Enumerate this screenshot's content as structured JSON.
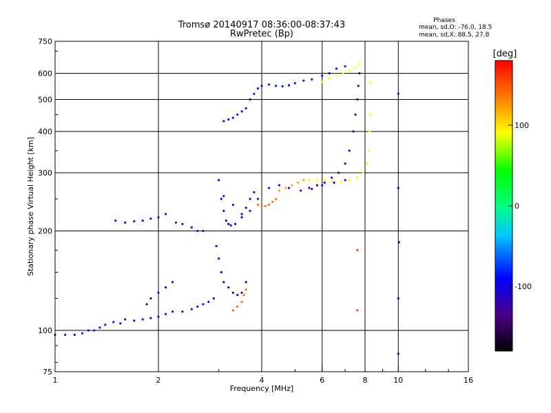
{
  "chart_data": {
    "type": "scatter",
    "title": "Tromsø 20140917 08:36:00-08:37:43",
    "subtitle": "RwPretec (Bp)",
    "xlabel": "Frequency [MHz]",
    "ylabel": "Stationary phase Virtual Height [km]",
    "x_scale": "log",
    "y_scale": "log",
    "xlim": [
      1,
      16
    ],
    "ylim": [
      75,
      750
    ],
    "x_ticks": [
      1,
      2,
      4,
      6,
      8,
      10,
      16
    ],
    "x_tick_labels": [
      "1",
      "2",
      "4",
      "6",
      "8",
      "10",
      "16"
    ],
    "y_ticks": [
      75,
      100,
      200,
      300,
      400,
      500,
      600,
      750
    ],
    "y_tick_labels": [
      "75",
      "100",
      "200",
      "300",
      "400",
      "500",
      "600",
      "750"
    ],
    "grid": true,
    "phases_header": "Phases",
    "stats": [
      "mean, sd,O: -76.0, 18.5",
      "mean, sd,X:  88.5, 27.8"
    ],
    "colorbar": {
      "label": "[deg]",
      "range": [
        -180,
        180
      ],
      "tick_values": [
        100,
        0,
        -100
      ],
      "tick_labels": [
        "100",
        "0",
        "-100"
      ]
    },
    "series": [
      {
        "phase": -85,
        "x": [
          1.0,
          1.07,
          1.14,
          1.2,
          1.25,
          1.3,
          1.35,
          1.4,
          1.48,
          1.55,
          1.6,
          1.7,
          1.8,
          1.9,
          2.0,
          2.1,
          2.2,
          2.35,
          2.5,
          2.6,
          2.7,
          2.8,
          2.9
        ],
        "y": [
          97,
          97,
          97,
          98,
          100,
          100,
          102,
          104,
          106,
          105,
          108,
          107,
          108,
          109,
          110,
          112,
          114,
          114,
          116,
          118,
          120,
          122,
          125
        ]
      },
      {
        "phase": -85,
        "x": [
          1.5,
          1.6,
          1.7,
          1.8,
          1.9,
          2.0,
          2.1,
          2.25,
          2.35,
          2.5,
          2.6,
          2.7
        ],
        "y": [
          215,
          212,
          214,
          215,
          218,
          220,
          225,
          212,
          210,
          205,
          200,
          200
        ]
      },
      {
        "phase": -85,
        "x": [
          3.1,
          3.3,
          3.5,
          3.7,
          3.9,
          4.2,
          4.5,
          4.8,
          5.2,
          5.6,
          6.0,
          6.5,
          7.0
        ],
        "y": [
          255,
          240,
          225,
          230,
          250,
          270,
          275,
          270,
          265,
          268,
          275,
          280,
          285
        ]
      },
      {
        "phase": -85,
        "x": [
          3.1,
          3.2,
          3.3,
          3.4,
          3.5,
          3.6,
          3.7,
          3.8,
          3.9,
          4.0,
          4.2,
          4.4,
          4.6,
          4.8,
          5.0,
          5.3,
          5.6,
          6.0,
          6.3,
          6.6,
          7.0
        ],
        "y": [
          430,
          435,
          440,
          450,
          460,
          470,
          500,
          520,
          540,
          550,
          555,
          550,
          548,
          552,
          560,
          570,
          575,
          590,
          600,
          620,
          630
        ]
      },
      {
        "phase": -105,
        "x": [
          3.0,
          3.05,
          3.1,
          3.15,
          3.2,
          3.25,
          3.35,
          3.5,
          3.6,
          3.7,
          3.8
        ],
        "y": [
          285,
          250,
          230,
          215,
          210,
          208,
          210,
          220,
          235,
          250,
          262
        ]
      },
      {
        "phase": -105,
        "x": [
          2.95,
          3.0,
          3.05,
          3.1,
          3.2,
          3.3,
          3.4,
          3.5,
          3.6
        ],
        "y": [
          180,
          165,
          150,
          140,
          135,
          130,
          128,
          130,
          140
        ]
      },
      {
        "phase": -105,
        "x": [
          1.85,
          1.9,
          2.0,
          2.1,
          2.2
        ],
        "y": [
          120,
          125,
          130,
          135,
          140
        ]
      },
      {
        "phase": -115,
        "x": [
          5.5,
          5.8,
          6.1,
          6.4,
          6.7,
          7.0,
          7.2,
          7.4,
          7.5,
          7.6,
          7.65,
          7.7
        ],
        "y": [
          270,
          275,
          280,
          290,
          300,
          320,
          350,
          400,
          450,
          500,
          550,
          600
        ]
      },
      {
        "phase": 140,
        "x": [
          3.9,
          4.0,
          4.1,
          4.2,
          4.3,
          4.4
        ],
        "y": [
          240,
          238,
          238,
          240,
          245,
          250
        ]
      },
      {
        "phase": 140,
        "x": [
          3.3,
          3.4,
          3.5,
          3.55,
          3.6
        ],
        "y": [
          115,
          118,
          122,
          128,
          133
        ]
      },
      {
        "phase": 120,
        "x": [
          4.5,
          4.7,
          4.9,
          5.1,
          5.3,
          5.5
        ],
        "y": [
          265,
          270,
          275,
          280,
          285,
          285
        ]
      },
      {
        "phase": 90,
        "x": [
          5.5,
          5.8,
          6.1,
          6.4,
          6.8,
          7.2,
          7.6,
          7.9,
          8.1,
          8.2,
          8.25,
          8.3,
          8.3
        ],
        "y": [
          285,
          285,
          285,
          283,
          282,
          285,
          290,
          300,
          320,
          350,
          400,
          450,
          560
        ]
      },
      {
        "phase": 90,
        "x": [
          6.0,
          6.3,
          6.6,
          6.9,
          7.2,
          7.5,
          7.7
        ],
        "y": [
          565,
          580,
          595,
          600,
          610,
          625,
          640
        ]
      },
      {
        "phase": -100,
        "x": [
          10.0,
          10.0,
          10.05,
          10.0,
          10.0
        ],
        "y": [
          520,
          270,
          185,
          125,
          85
        ]
      },
      {
        "phase": 160,
        "x": [
          7.6,
          7.6
        ],
        "y": [
          175,
          115
        ]
      }
    ]
  }
}
